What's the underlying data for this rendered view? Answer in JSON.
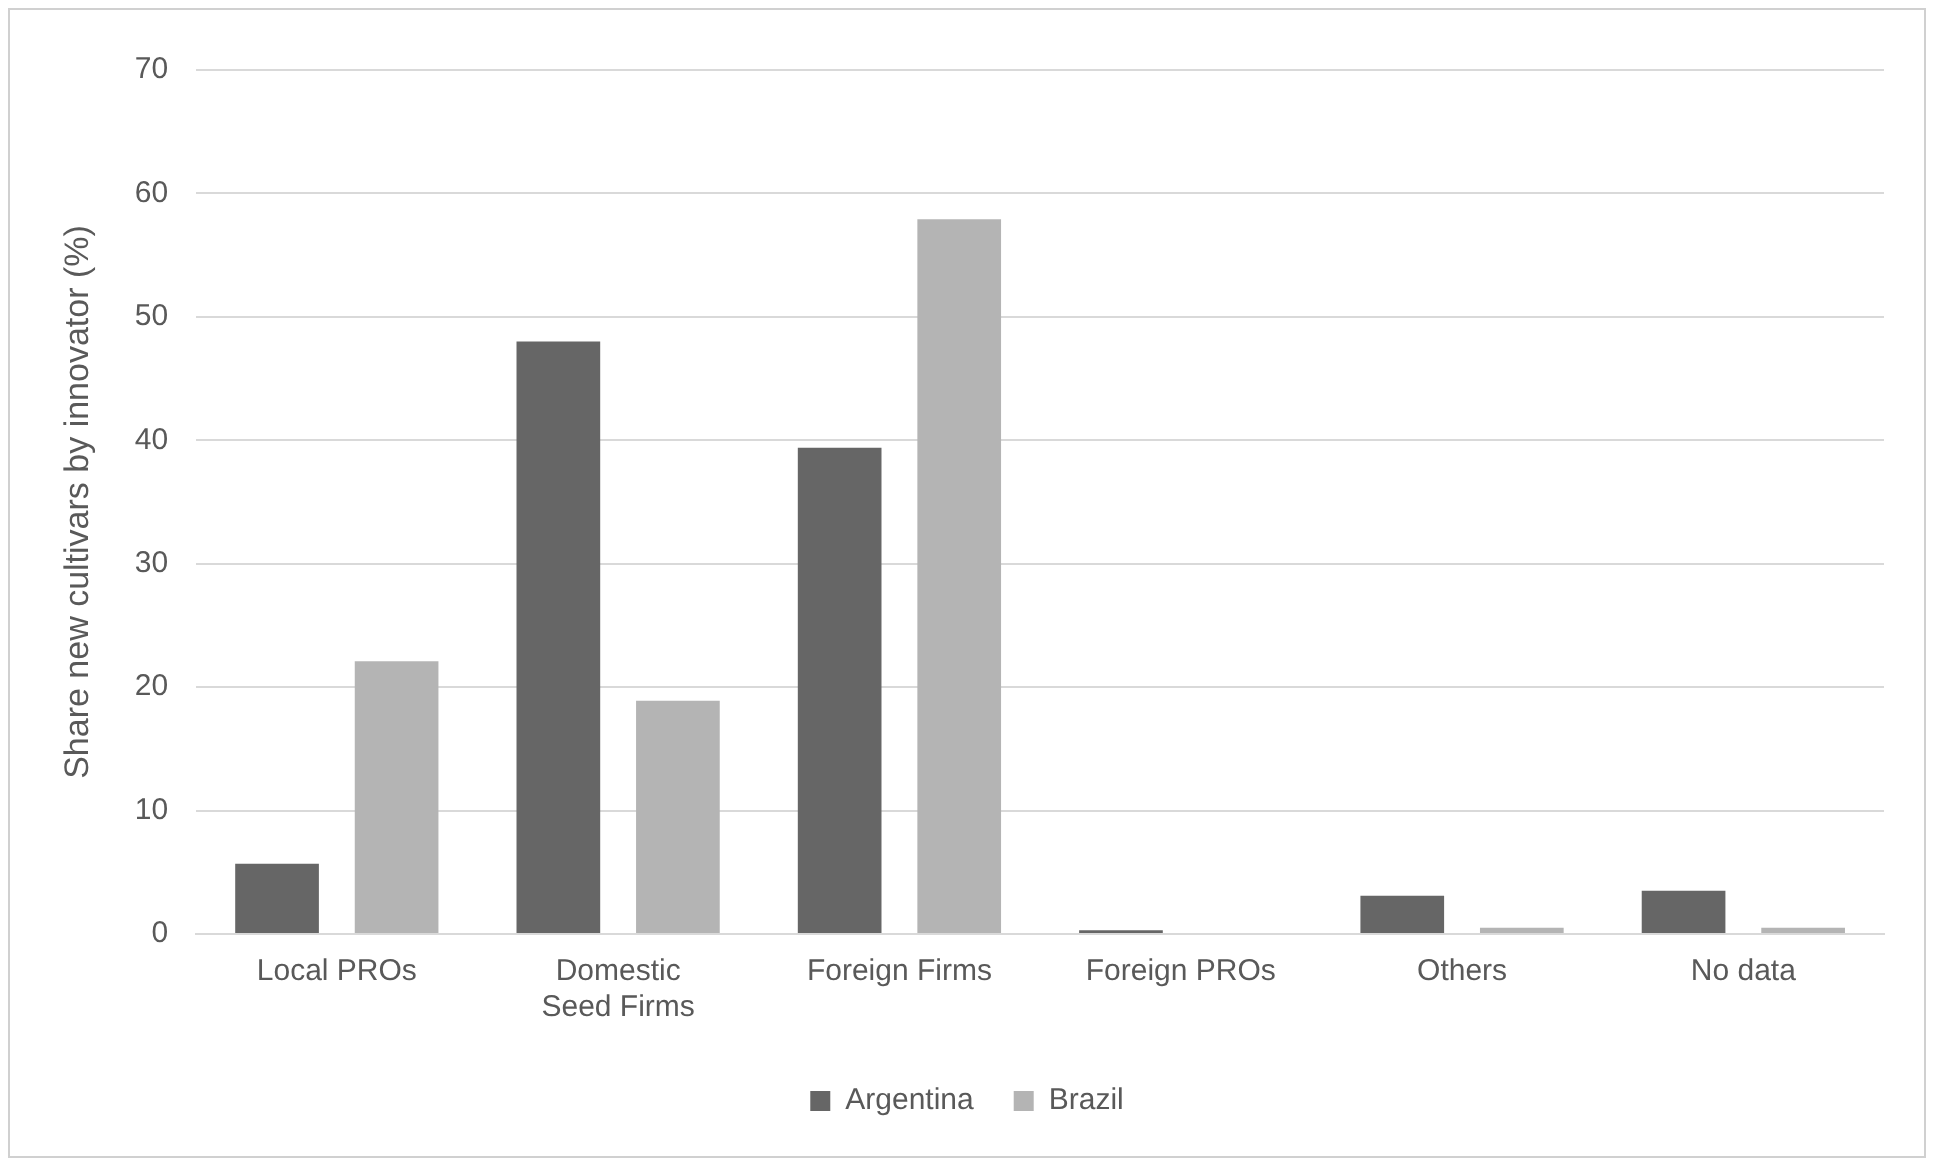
{
  "chart_data": {
    "type": "bar",
    "ylabel": "Share new cultivars by innovator (%)",
    "categories": [
      "Local PROs",
      "Domestic Seed Firms",
      "Foreign Firms",
      "Foreign PROs",
      "Others",
      "No data"
    ],
    "series": [
      {
        "name": "Argentina",
        "color": "#666666",
        "values": [
          5.7,
          48.0,
          39.4,
          0.3,
          3.1,
          3.5
        ]
      },
      {
        "name": "Brazil",
        "color": "#b4b4b4",
        "values": [
          22.1,
          18.9,
          57.9,
          0,
          0.5,
          0.5
        ]
      }
    ],
    "ylim": [
      0,
      70
    ],
    "yticks": [
      0,
      10,
      20,
      30,
      40,
      50,
      60,
      70
    ],
    "grid": "y",
    "legend": "bottom"
  }
}
